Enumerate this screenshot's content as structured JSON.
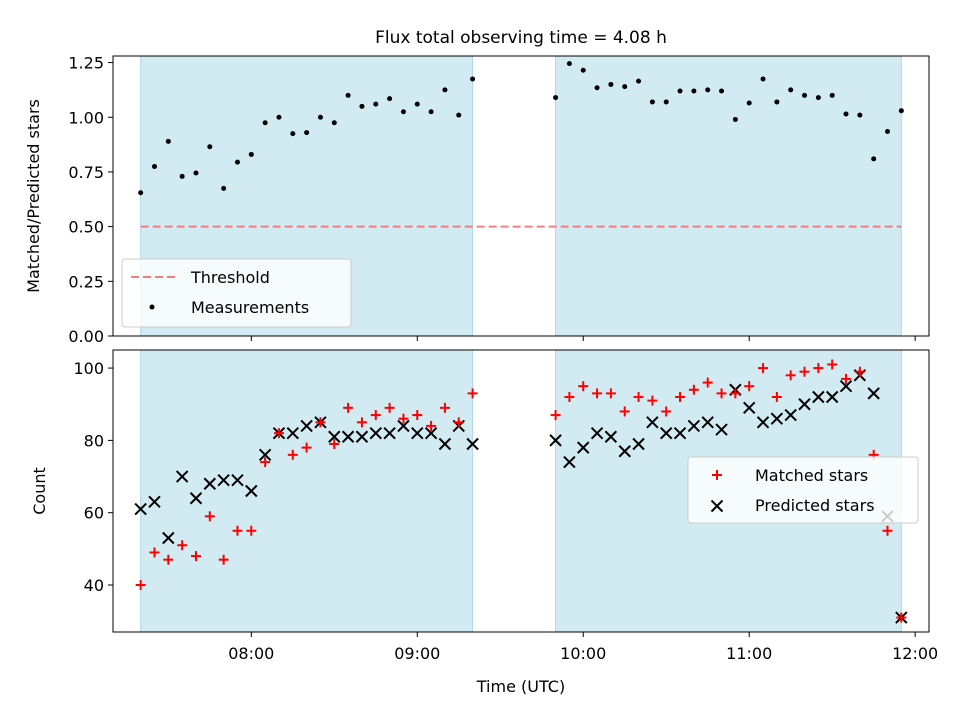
{
  "title": "Flux total observing time = 4.08 h",
  "colors": {
    "span_fill": "#add8e6",
    "threshold": "#f08080",
    "measurement": "#000000",
    "matched": "#ff0000",
    "predicted": "#000000"
  },
  "chart_data": [
    {
      "type": "scatter",
      "panel": "top",
      "ylabel": "Matched/Predicted stars",
      "xlabel": "",
      "ylim": [
        0,
        1.28
      ],
      "xlim": [
        "07:10",
        "12:05"
      ],
      "yticks": [
        0.0,
        0.25,
        0.5,
        0.75,
        1.0,
        1.25
      ],
      "ytick_labels": [
        "0.00",
        "0.25",
        "0.50",
        "0.75",
        "1.00",
        "1.25"
      ],
      "shaded_spans": [
        [
          "07:20",
          "09:20"
        ],
        [
          "09:50",
          "11:55"
        ]
      ],
      "threshold": 0.5,
      "threshold_span": [
        "07:20",
        "11:55"
      ],
      "legend": {
        "position": "lower-left",
        "entries": [
          "Threshold",
          "Measurements"
        ]
      },
      "series": [
        {
          "name": "Measurements",
          "x": [
            "07:20",
            "07:25",
            "07:30",
            "07:35",
            "07:40",
            "07:45",
            "07:50",
            "07:55",
            "08:00",
            "08:05",
            "08:10",
            "08:15",
            "08:20",
            "08:25",
            "08:30",
            "08:35",
            "08:40",
            "08:45",
            "08:50",
            "08:55",
            "09:00",
            "09:05",
            "09:10",
            "09:15",
            "09:20",
            "09:50",
            "09:55",
            "10:00",
            "10:05",
            "10:10",
            "10:15",
            "10:20",
            "10:25",
            "10:30",
            "10:35",
            "10:40",
            "10:45",
            "10:50",
            "10:55",
            "11:00",
            "11:05",
            "11:10",
            "11:15",
            "11:20",
            "11:25",
            "11:30",
            "11:35",
            "11:40",
            "11:45",
            "11:50",
            "11:55"
          ],
          "y": [
            0.655,
            0.775,
            0.89,
            0.73,
            0.745,
            0.865,
            0.675,
            0.795,
            0.83,
            0.975,
            1.0,
            0.925,
            0.93,
            1.0,
            0.975,
            1.1,
            1.05,
            1.06,
            1.085,
            1.025,
            1.06,
            1.025,
            1.125,
            1.01,
            1.175,
            1.09,
            1.245,
            1.215,
            1.135,
            1.15,
            1.14,
            1.165,
            1.07,
            1.07,
            1.12,
            1.12,
            1.125,
            1.12,
            0.99,
            1.065,
            1.175,
            1.07,
            1.125,
            1.1,
            1.09,
            1.1,
            1.015,
            1.01,
            0.81,
            0.935,
            1.03
          ]
        }
      ]
    },
    {
      "type": "scatter",
      "panel": "bottom",
      "ylabel": "Count",
      "xlabel": "Time (UTC)",
      "ylim": [
        27,
        105
      ],
      "xlim": [
        "07:10",
        "12:05"
      ],
      "yticks": [
        40,
        60,
        80,
        100
      ],
      "ytick_labels": [
        "40",
        "60",
        "80",
        "100"
      ],
      "xticks": [
        "08:00",
        "09:00",
        "10:00",
        "11:00",
        "12:00"
      ],
      "xtick_labels": [
        "08:00",
        "09:00",
        "10:00",
        "11:00",
        "12:00"
      ],
      "shaded_spans": [
        [
          "07:20",
          "09:20"
        ],
        [
          "09:50",
          "11:55"
        ]
      ],
      "legend": {
        "position": "center-right",
        "entries": [
          "Matched stars",
          "Predicted stars"
        ]
      },
      "series": [
        {
          "name": "Matched stars",
          "x": [
            "07:20",
            "07:25",
            "07:30",
            "07:35",
            "07:40",
            "07:45",
            "07:50",
            "07:55",
            "08:00",
            "08:05",
            "08:10",
            "08:15",
            "08:20",
            "08:25",
            "08:30",
            "08:35",
            "08:40",
            "08:45",
            "08:50",
            "08:55",
            "09:00",
            "09:05",
            "09:10",
            "09:15",
            "09:20",
            "09:50",
            "09:55",
            "10:00",
            "10:05",
            "10:10",
            "10:15",
            "10:20",
            "10:25",
            "10:30",
            "10:35",
            "10:40",
            "10:45",
            "10:50",
            "10:55",
            "11:00",
            "11:05",
            "11:10",
            "11:15",
            "11:20",
            "11:25",
            "11:30",
            "11:35",
            "11:40",
            "11:45",
            "11:50",
            "11:55"
          ],
          "y": [
            40,
            49,
            47,
            51,
            48,
            59,
            47,
            55,
            55,
            74,
            82,
            76,
            78,
            85,
            79,
            89,
            85,
            87,
            89,
            86,
            87,
            84,
            89,
            85,
            93,
            87,
            92,
            95,
            93,
            93,
            88,
            92,
            91,
            88,
            92,
            94,
            96,
            93,
            93,
            95,
            100,
            92,
            98,
            99,
            100,
            101,
            97,
            99,
            76,
            55,
            31
          ]
        },
        {
          "name": "Predicted stars",
          "x": [
            "07:20",
            "07:25",
            "07:30",
            "07:35",
            "07:40",
            "07:45",
            "07:50",
            "07:55",
            "08:00",
            "08:05",
            "08:10",
            "08:15",
            "08:20",
            "08:25",
            "08:30",
            "08:35",
            "08:40",
            "08:45",
            "08:50",
            "08:55",
            "09:00",
            "09:05",
            "09:10",
            "09:15",
            "09:20",
            "09:50",
            "09:55",
            "10:00",
            "10:05",
            "10:10",
            "10:15",
            "10:20",
            "10:25",
            "10:30",
            "10:35",
            "10:40",
            "10:45",
            "10:50",
            "10:55",
            "11:00",
            "11:05",
            "11:10",
            "11:15",
            "11:20",
            "11:25",
            "11:30",
            "11:35",
            "11:40",
            "11:45",
            "11:50",
            "11:55"
          ],
          "y": [
            61,
            63,
            53,
            70,
            64,
            68,
            69,
            69,
            66,
            76,
            82,
            82,
            84,
            85,
            81,
            81,
            81,
            82,
            82,
            84,
            82,
            82,
            79,
            84,
            79,
            80,
            74,
            78,
            82,
            81,
            77,
            79,
            85,
            82,
            82,
            84,
            85,
            83,
            94,
            89,
            85,
            86,
            87,
            90,
            92,
            92,
            95,
            98,
            93,
            59,
            31
          ]
        }
      ]
    }
  ]
}
